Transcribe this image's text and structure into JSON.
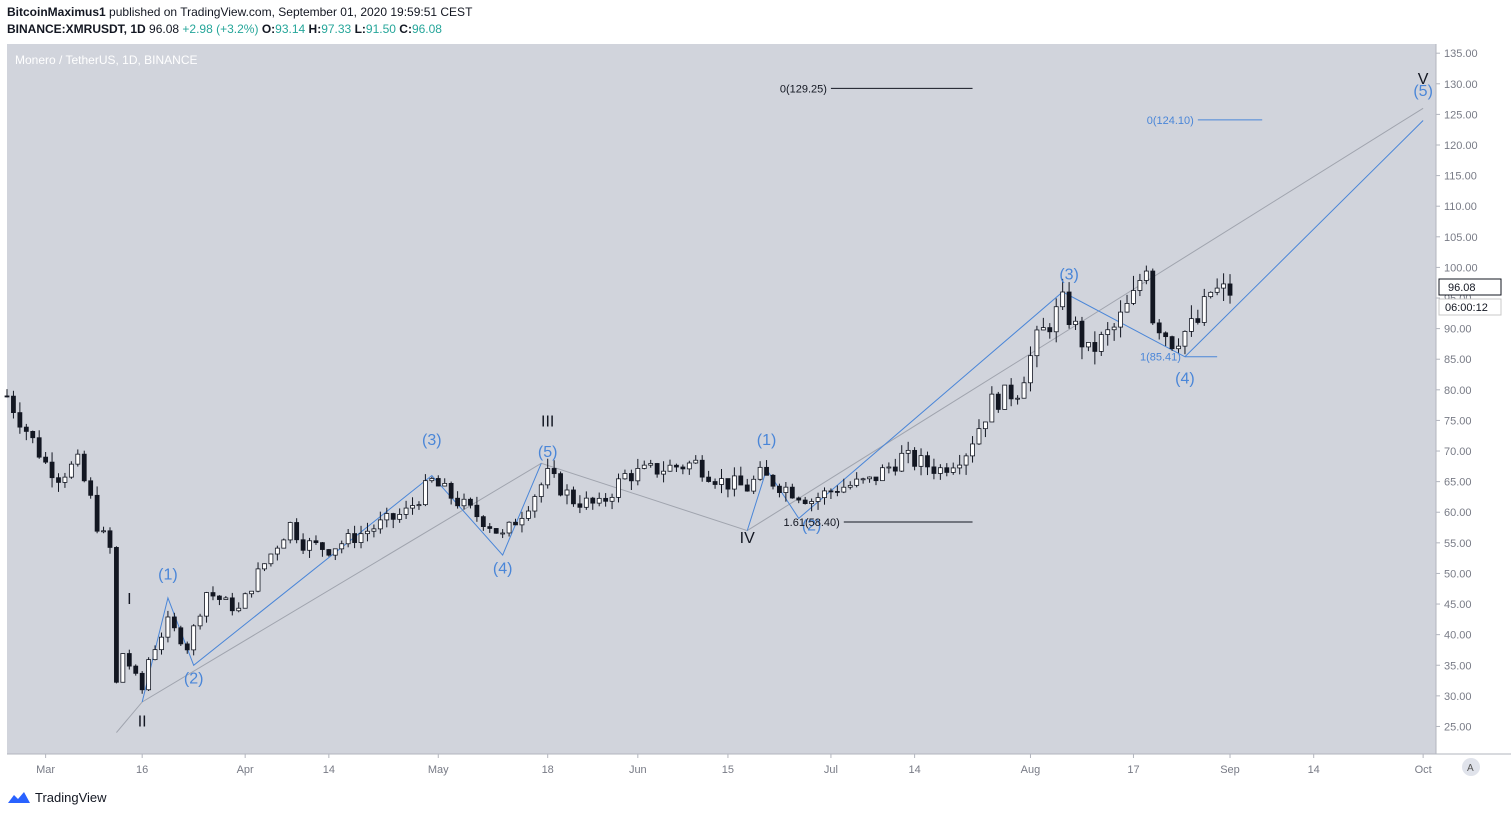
{
  "header": {
    "author": "BitcoinMaximus1",
    "published_text": "published on TradingView.com, September 01, 2020 19:59:51 CEST",
    "symbol": "BINANCE:XMRUSDT, 1D",
    "last": "96.08",
    "change": "+2.98 (+3.2%)",
    "o_label": "O:",
    "o": "93.14",
    "h_label": "H:",
    "h": "97.33",
    "l_label": "L:",
    "l": "91.50",
    "c_label": "C:",
    "c": "96.08"
  },
  "watermark": "Monero / TetherUS, 1D, BINANCE",
  "footer": {
    "brand": "TradingView"
  },
  "price_label": "96.08",
  "countdown_label": "06:00:12",
  "scale_mode_button": "A",
  "colors": {
    "up": "#ffffff",
    "down": "#131722",
    "wave_blue": "#4a86d8",
    "wave_black": "#131722",
    "background": "#d1d4dc"
  },
  "chart_data": {
    "type": "candlestick",
    "title": "Monero / TetherUS, 1D, BINANCE",
    "y_ticks": [
      "135.00",
      "130.00",
      "125.00",
      "120.00",
      "115.00",
      "110.00",
      "105.00",
      "100.00",
      "95.00",
      "90.00",
      "85.00",
      "80.00",
      "75.00",
      "70.00",
      "65.00",
      "60.00",
      "55.00",
      "50.00",
      "45.00",
      "40.00",
      "35.00",
      "30.00",
      "25.00"
    ],
    "x_ticks": [
      {
        "label": "Mar",
        "date": "2020-03-01"
      },
      {
        "label": "16",
        "date": "2020-03-16"
      },
      {
        "label": "Apr",
        "date": "2020-04-01"
      },
      {
        "label": "14",
        "date": "2020-04-14"
      },
      {
        "label": "May",
        "date": "2020-05-01"
      },
      {
        "label": "18",
        "date": "2020-05-18"
      },
      {
        "label": "Jun",
        "date": "2020-06-01"
      },
      {
        "label": "15",
        "date": "2020-06-15"
      },
      {
        "label": "Jul",
        "date": "2020-07-01"
      },
      {
        "label": "14",
        "date": "2020-07-14"
      },
      {
        "label": "Aug",
        "date": "2020-08-01"
      },
      {
        "label": "17",
        "date": "2020-08-17"
      },
      {
        "label": "Sep",
        "date": "2020-09-01"
      },
      {
        "label": "14",
        "date": "2020-09-14"
      },
      {
        "label": "Oct",
        "date": "2020-10-01"
      }
    ],
    "ylim": [
      20.5,
      136.5
    ],
    "xlim": [
      "2020-02-24",
      "2020-10-03"
    ],
    "grid": false,
    "candles_daily": [
      {
        "date": "2020-02-24",
        "close": 79
      },
      {
        "date": "2020-03-01",
        "close": 68
      },
      {
        "date": "2020-03-03",
        "close": 66
      },
      {
        "date": "2020-03-06",
        "close": 68
      },
      {
        "date": "2020-03-08",
        "close": 62
      },
      {
        "date": "2020-03-09",
        "close": 58
      },
      {
        "date": "2020-03-10",
        "close": 56
      },
      {
        "date": "2020-03-11",
        "close": 54
      },
      {
        "date": "2020-03-12",
        "close": 32
      },
      {
        "date": "2020-03-13",
        "close": 37
      },
      {
        "date": "2020-03-16",
        "close": 31
      },
      {
        "date": "2020-03-17",
        "close": 36
      },
      {
        "date": "2020-03-20",
        "close": 42
      },
      {
        "date": "2020-03-23",
        "close": 38
      },
      {
        "date": "2020-03-26",
        "close": 47
      },
      {
        "date": "2020-03-31",
        "close": 44
      },
      {
        "date": "2020-04-03",
        "close": 50
      },
      {
        "date": "2020-04-08",
        "close": 58
      },
      {
        "date": "2020-04-10",
        "close": 55
      },
      {
        "date": "2020-04-14",
        "close": 54
      },
      {
        "date": "2020-04-18",
        "close": 56
      },
      {
        "date": "2020-04-22",
        "close": 58
      },
      {
        "date": "2020-04-26",
        "close": 60
      },
      {
        "date": "2020-04-30",
        "close": 65
      },
      {
        "date": "2020-05-05",
        "close": 61
      },
      {
        "date": "2020-05-09",
        "close": 58
      },
      {
        "date": "2020-05-11",
        "close": 56
      },
      {
        "date": "2020-05-14",
        "close": 60
      },
      {
        "date": "2020-05-18",
        "close": 66
      },
      {
        "date": "2020-05-22",
        "close": 62
      },
      {
        "date": "2020-05-26",
        "close": 61
      },
      {
        "date": "2020-05-30",
        "close": 66
      },
      {
        "date": "2020-06-04",
        "close": 67
      },
      {
        "date": "2020-06-10",
        "close": 68
      },
      {
        "date": "2020-06-14",
        "close": 65
      },
      {
        "date": "2020-06-18",
        "close": 64
      },
      {
        "date": "2020-06-20",
        "close": 66
      },
      {
        "date": "2020-06-24",
        "close": 64
      },
      {
        "date": "2020-06-28",
        "close": 62
      },
      {
        "date": "2020-07-02",
        "close": 64
      },
      {
        "date": "2020-07-07",
        "close": 65
      },
      {
        "date": "2020-07-12",
        "close": 69
      },
      {
        "date": "2020-07-18",
        "close": 67
      },
      {
        "date": "2020-07-22",
        "close": 70
      },
      {
        "date": "2020-07-26",
        "close": 78
      },
      {
        "date": "2020-07-30",
        "close": 80
      },
      {
        "date": "2020-08-02",
        "close": 88
      },
      {
        "date": "2020-08-06",
        "close": 94
      },
      {
        "date": "2020-08-10",
        "close": 86
      },
      {
        "date": "2020-08-14",
        "close": 90
      },
      {
        "date": "2020-08-17",
        "close": 95
      },
      {
        "date": "2020-08-19",
        "close": 101
      },
      {
        "date": "2020-08-20",
        "close": 92
      },
      {
        "date": "2020-08-23",
        "close": 88
      },
      {
        "date": "2020-08-27",
        "close": 91
      },
      {
        "date": "2020-08-29",
        "close": 96
      },
      {
        "date": "2020-09-01",
        "close": 96.08
      }
    ],
    "annotations": {
      "labels": [
        {
          "text": "I",
          "date": "2020-03-14",
          "price": 45.0,
          "color": "black"
        },
        {
          "text": "II",
          "date": "2020-03-16",
          "price": 25.0,
          "color": "black"
        },
        {
          "text": "III",
          "date": "2020-05-18",
          "price": 74.0,
          "color": "black"
        },
        {
          "text": "IV",
          "date": "2020-06-18",
          "price": 55.0,
          "color": "black"
        },
        {
          "text": "V",
          "date": "2020-10-01",
          "price": 130.0,
          "color": "black"
        },
        {
          "text": "(1)",
          "date": "2020-03-20",
          "price": 49.0,
          "color": "blue"
        },
        {
          "text": "(2)",
          "date": "2020-03-24",
          "price": 32.0,
          "color": "blue"
        },
        {
          "text": "(3)",
          "date": "2020-04-30",
          "price": 71.0,
          "color": "blue"
        },
        {
          "text": "(4)",
          "date": "2020-05-11",
          "price": 50.0,
          "color": "blue"
        },
        {
          "text": "(5)",
          "date": "2020-05-18",
          "price": 69.0,
          "color": "blue"
        },
        {
          "text": "(1)",
          "date": "2020-06-21",
          "price": 71.0,
          "color": "blue"
        },
        {
          "text": "(2)",
          "date": "2020-06-28",
          "price": 57.0,
          "color": "blue"
        },
        {
          "text": "(3)",
          "date": "2020-08-07",
          "price": 98.0,
          "color": "blue"
        },
        {
          "text": "(4)",
          "date": "2020-08-25",
          "price": 81.0,
          "color": "blue"
        },
        {
          "text": "(5)",
          "date": "2020-10-01",
          "price": 128.0,
          "color": "blue"
        }
      ],
      "fib_levels": [
        {
          "text": "0(129.25)",
          "price": 129.25,
          "color": "black"
        },
        {
          "text": "0(124.10)",
          "price": 124.1,
          "color": "blue"
        },
        {
          "text": "1(85.41)",
          "price": 85.41,
          "color": "blue"
        },
        {
          "text": "1.61(58.40)",
          "price": 58.4,
          "color": "black"
        }
      ]
    }
  }
}
